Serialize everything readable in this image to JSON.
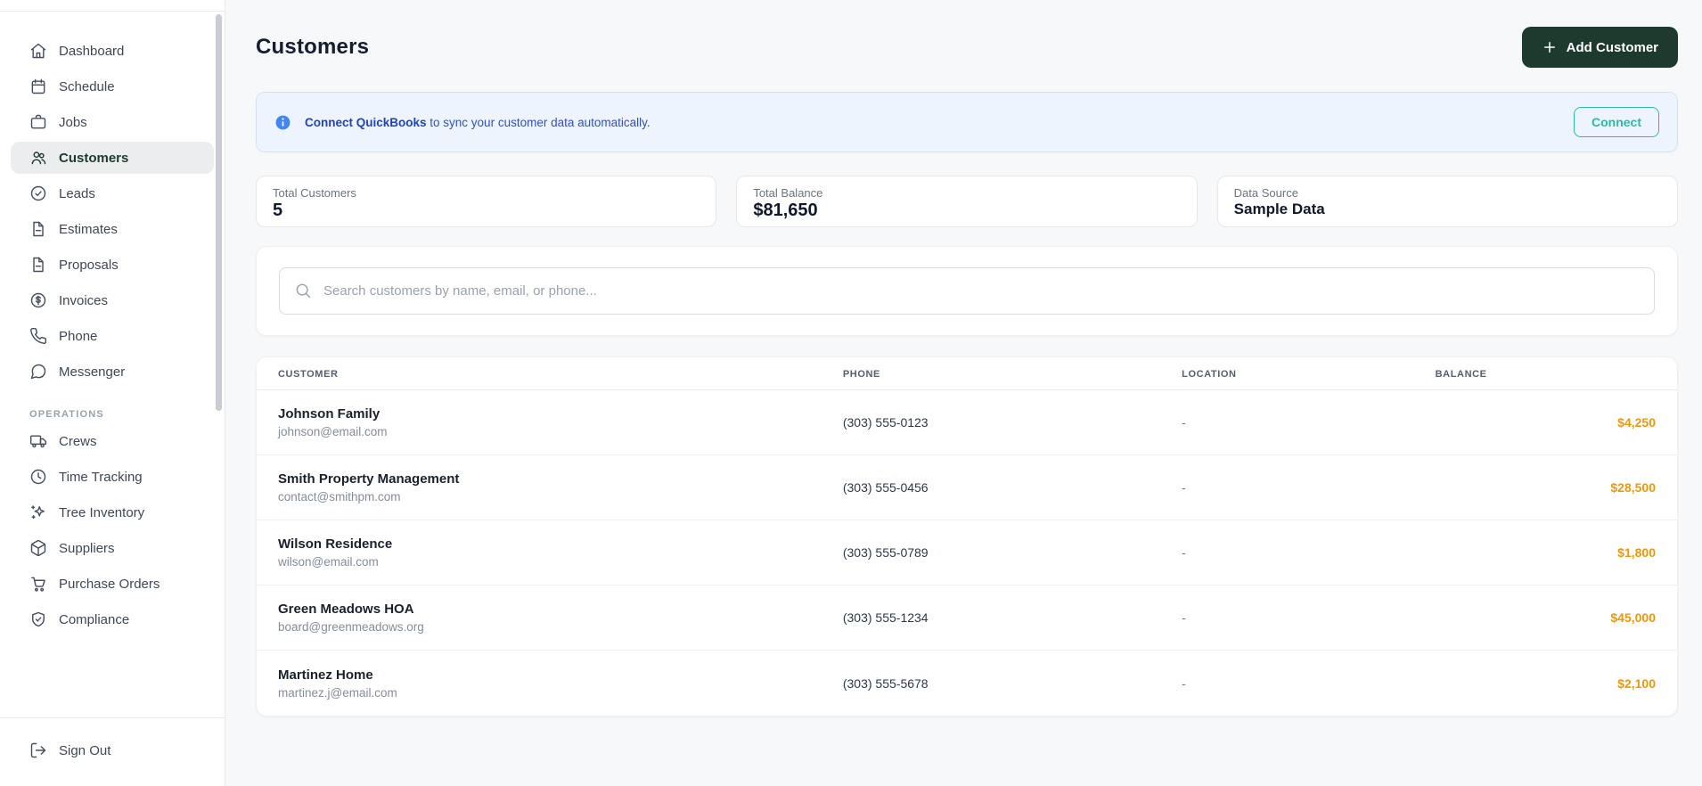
{
  "colors": {
    "accent_green": "#1d3a2e",
    "active_item_green": "#1d3b2f",
    "banner_blue_bg": "#edf4fd",
    "banner_blue_text": "#3150c0",
    "info_icon_blue": "#4285f4",
    "connect_teal": "#2cb9ab",
    "balance_orange": "#e9980f"
  },
  "sidebar": {
    "sections": [
      {
        "label": "",
        "items": [
          {
            "label": "Dashboard",
            "icon": "home",
            "active": false
          },
          {
            "label": "Schedule",
            "icon": "calendar",
            "active": false
          },
          {
            "label": "Jobs",
            "icon": "briefcase",
            "active": false
          },
          {
            "label": "Customers",
            "icon": "users",
            "active": true
          },
          {
            "label": "Leads",
            "icon": "check-circle",
            "active": false
          },
          {
            "label": "Estimates",
            "icon": "file-text",
            "active": false
          },
          {
            "label": "Proposals",
            "icon": "file-text",
            "active": false
          },
          {
            "label": "Invoices",
            "icon": "dollar-circle",
            "active": false
          },
          {
            "label": "Phone",
            "icon": "phone",
            "active": false
          },
          {
            "label": "Messenger",
            "icon": "message-circle",
            "active": false
          }
        ]
      },
      {
        "label": "OPERATIONS",
        "items": [
          {
            "label": "Crews",
            "icon": "truck",
            "active": false
          },
          {
            "label": "Time Tracking",
            "icon": "clock",
            "active": false
          },
          {
            "label": "Tree Inventory",
            "icon": "sparkles",
            "active": false
          },
          {
            "label": "Suppliers",
            "icon": "package",
            "active": false
          },
          {
            "label": "Purchase Orders",
            "icon": "shopping-cart",
            "active": false
          },
          {
            "label": "Compliance",
            "icon": "shield-check",
            "active": false
          }
        ]
      }
    ],
    "sign_out": {
      "label": "Sign Out",
      "icon": "log-out"
    }
  },
  "header": {
    "title": "Customers",
    "add_button": {
      "label": "Add Customer",
      "icon": "plus"
    }
  },
  "banner": {
    "icon": "info",
    "bold_text": "Connect QuickBooks",
    "text": " to sync your customer data automatically.",
    "button_label": "Connect"
  },
  "stats": [
    {
      "label": "Total Customers",
      "value": "5"
    },
    {
      "label": "Total Balance",
      "value": "$81,650"
    },
    {
      "label": "Data Source",
      "value": "Sample Data"
    }
  ],
  "search": {
    "icon": "search",
    "placeholder": "Search customers by name, email, or phone..."
  },
  "table": {
    "columns": [
      "Customer",
      "Phone",
      "Location",
      "Balance"
    ],
    "rows": [
      {
        "name": "Johnson Family",
        "email": "johnson@email.com",
        "phone": "(303) 555-0123",
        "location": "-",
        "balance": "$4,250"
      },
      {
        "name": "Smith Property Management",
        "email": "contact@smithpm.com",
        "phone": "(303) 555-0456",
        "location": "-",
        "balance": "$28,500"
      },
      {
        "name": "Wilson Residence",
        "email": "wilson@email.com",
        "phone": "(303) 555-0789",
        "location": "-",
        "balance": "$1,800"
      },
      {
        "name": "Green Meadows HOA",
        "email": "board@greenmeadows.org",
        "phone": "(303) 555-1234",
        "location": "-",
        "balance": "$45,000"
      },
      {
        "name": "Martinez Home",
        "email": "martinez.j@email.com",
        "phone": "(303) 555-5678",
        "location": "-",
        "balance": "$2,100"
      }
    ]
  }
}
